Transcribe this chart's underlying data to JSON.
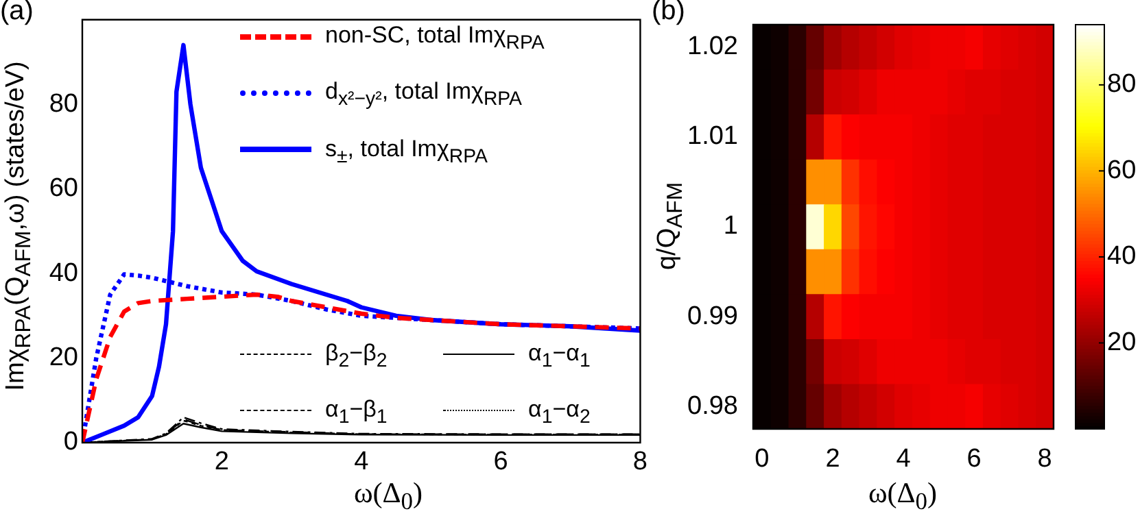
{
  "chart_data": [
    {
      "type": "line",
      "title": "(a)",
      "xlabel": "ω(Δ$_{0}$)",
      "ylabel": "Imχ$_{RPA}$(Q$_{AFM}$,ω) (states/eV)",
      "xlim": [
        0,
        8
      ],
      "xticks": [
        2,
        4,
        6,
        8
      ],
      "ylim": [
        0,
        100
      ],
      "yticks": [
        0,
        20,
        40,
        60,
        80
      ],
      "grid": false,
      "legend": "top right",
      "marker": "none",
      "series": [
        {
          "name": "non-SC, total Imχ$_{RPA}$",
          "color": "#ff0000",
          "line_style": "dashed",
          "x": [
            0,
            0.2,
            0.4,
            0.6,
            0.8,
            1.0,
            1.5,
            2,
            2.5,
            2.8,
            3,
            3.5,
            4,
            4.5,
            5,
            6,
            7,
            8
          ],
          "values": [
            0,
            15,
            25,
            31,
            33,
            33.5,
            34,
            34.5,
            35,
            34.5,
            33.5,
            32,
            30.5,
            29.5,
            29,
            28,
            27.5,
            27
          ]
        },
        {
          "name": "d$_{x²−y²}$, total Imχ$_{RPA}$",
          "color": "#0000ff",
          "line_style": "dotted",
          "x": [
            0,
            0.2,
            0.4,
            0.6,
            0.8,
            1.0,
            1.5,
            2,
            2.5,
            3,
            3.5,
            4,
            5,
            6,
            7,
            8
          ],
          "values": [
            0,
            20,
            35,
            39.8,
            39.5,
            39,
            37,
            35.5,
            35,
            33.5,
            31.5,
            30,
            29,
            28,
            27.5,
            27
          ]
        },
        {
          "name": "s$_{±}$, total Imχ$_{RPA}$",
          "color": "#0000ff",
          "line_style": "solid",
          "x": [
            0,
            0.3,
            0.6,
            0.8,
            1.0,
            1.1,
            1.2,
            1.3,
            1.35,
            1.45,
            1.55,
            1.7,
            1.9,
            2,
            2.3,
            2.5,
            3,
            3.5,
            3.8,
            4,
            4.5,
            5,
            6,
            7,
            8
          ],
          "values": [
            0,
            2,
            4,
            6,
            11,
            18,
            28,
            50,
            83,
            94,
            80,
            65,
            55,
            50,
            43,
            40.5,
            37.5,
            35,
            33.5,
            32,
            30,
            29,
            28,
            27.5,
            26.5
          ]
        },
        {
          "name": "β$_{2}$−β$_{2}$",
          "color": "#000000",
          "line_style": "dashed",
          "x": [
            0,
            1,
            1.2,
            1.45,
            1.7,
            2,
            3,
            4,
            6,
            8
          ],
          "values": [
            0,
            0.8,
            2,
            5.5,
            4.2,
            3,
            2.5,
            2,
            2,
            2
          ]
        },
        {
          "name": "α$_{1}$−α$_{1}$",
          "color": "#000000",
          "line_style": "solid",
          "x": [
            0,
            1,
            1.2,
            1.45,
            1.7,
            2,
            3,
            4,
            6,
            8
          ],
          "values": [
            0,
            0.7,
            1.8,
            4.5,
            3.6,
            2.7,
            2.2,
            1.9,
            1.8,
            1.8
          ]
        },
        {
          "name": "α$_{1}$−β$_{1}$",
          "color": "#000000",
          "line_style": "dashdot",
          "x": [
            0,
            1,
            1.2,
            1.45,
            1.7,
            2,
            3,
            4,
            6,
            8
          ],
          "values": [
            0,
            0.9,
            2.2,
            6,
            4.6,
            3.2,
            2.6,
            2.1,
            2,
            2
          ]
        },
        {
          "name": "α$_{1}$−α$_{2}$",
          "color": "#000000",
          "line_style": "dotted",
          "x": [
            0,
            1,
            1.2,
            1.45,
            1.7,
            2,
            3,
            4,
            6,
            8
          ],
          "values": [
            0,
            0.8,
            2,
            5.2,
            4,
            3,
            2.4,
            2,
            1.9,
            1.9
          ]
        }
      ]
    },
    {
      "type": "heatmap",
      "title": "(b)",
      "xlabel": "ω(Δ$_{0}$)",
      "ylabel": "q/Q$_{AFM}$",
      "clim": [
        0,
        94
      ],
      "cticks": [
        20,
        40,
        60,
        80
      ],
      "categories": [
        "0",
        null,
        null,
        null,
        "2",
        null,
        null,
        null,
        "4",
        null,
        null,
        null,
        "6",
        null,
        null,
        null,
        "8"
      ],
      "y_categories": [
        "1.02",
        null,
        "1.01",
        null,
        "1",
        null,
        "0.99",
        null,
        "0.98"
      ],
      "cells": [
        [
          1,
          2,
          6,
          14,
          22,
          25,
          27,
          29,
          31,
          32,
          33,
          33,
          34,
          32,
          31,
          30,
          29
        ],
        [
          1,
          2,
          6,
          16,
          28,
          29,
          31,
          33,
          33,
          33,
          33,
          32,
          31,
          31,
          30,
          30,
          29
        ],
        [
          1,
          2,
          6,
          25,
          38,
          35,
          34,
          34,
          34,
          33,
          32,
          31,
          31,
          30,
          30,
          30,
          29
        ],
        [
          1,
          2,
          6,
          55,
          55,
          42,
          37,
          35,
          34,
          33,
          32,
          31,
          31,
          30,
          30,
          30,
          29
        ],
        [
          1,
          2,
          6,
          90,
          65,
          45,
          38,
          36,
          34,
          33,
          32,
          31,
          31,
          30,
          30,
          30,
          29
        ],
        [
          1,
          2,
          6,
          55,
          55,
          42,
          37,
          35,
          34,
          33,
          32,
          31,
          31,
          30,
          30,
          30,
          29
        ],
        [
          1,
          2,
          6,
          25,
          38,
          35,
          34,
          34,
          34,
          33,
          32,
          31,
          31,
          30,
          30,
          30,
          29
        ],
        [
          1,
          2,
          6,
          16,
          28,
          29,
          31,
          33,
          33,
          33,
          33,
          32,
          31,
          31,
          30,
          30,
          29
        ],
        [
          1,
          2,
          6,
          14,
          22,
          25,
          27,
          29,
          31,
          32,
          33,
          33,
          34,
          32,
          31,
          30,
          29
        ]
      ]
    }
  ]
}
